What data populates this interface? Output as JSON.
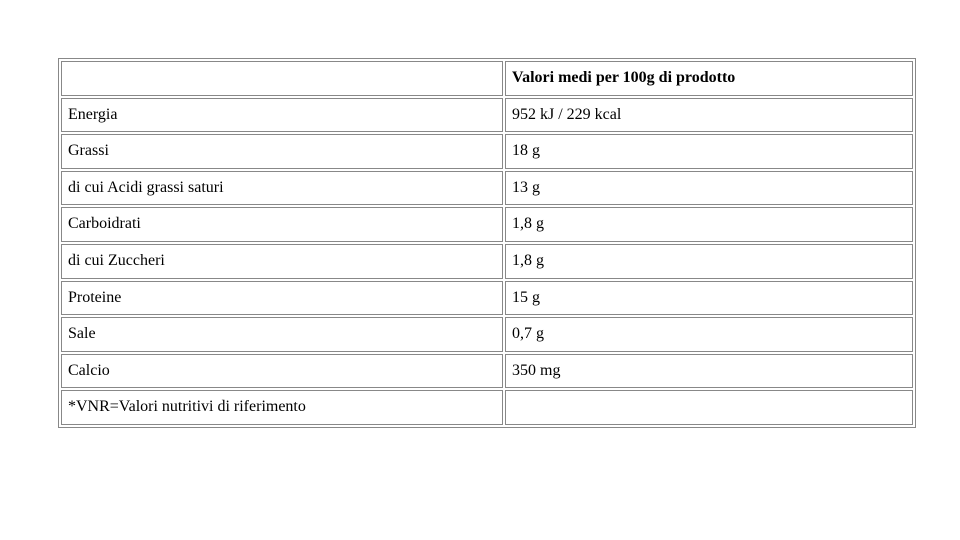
{
  "table": {
    "header": {
      "label": "",
      "value": "Valori medi per 100g di prodotto"
    },
    "rows": [
      {
        "label": "Energia",
        "value": "952 kJ / 229 kcal"
      },
      {
        "label": "Grassi",
        "value": "18 g"
      },
      {
        "label": "di cui Acidi grassi saturi",
        "value": "13 g"
      },
      {
        "label": "Carboidrati",
        "value": "1,8 g"
      },
      {
        "label": "di cui Zuccheri",
        "value": "1,8 g"
      },
      {
        "label": "Proteine",
        "value": "15 g"
      },
      {
        "label": "Sale",
        "value": "0,7 g"
      },
      {
        "label": "Calcio",
        "value": "350 mg"
      },
      {
        "label": "*VNR=Valori nutritivi di riferimento",
        "value": ""
      }
    ],
    "column_widths": [
      "52%",
      "48%"
    ],
    "border_color": "#888888",
    "text_color": "#000000",
    "font_family": "Times New Roman",
    "font_size_pt": 12
  }
}
